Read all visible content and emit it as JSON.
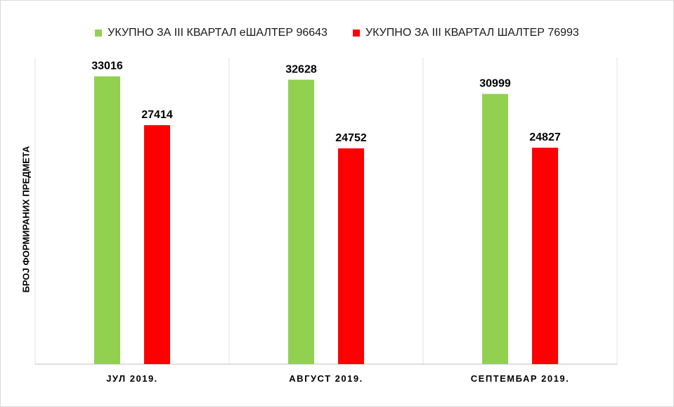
{
  "chart_data": {
    "type": "bar",
    "title": "",
    "xlabel": "",
    "ylabel": "БРОЈ ФОРМИРАНИХ ПРЕДМЕТА",
    "categories": [
      "ЈУЛ 2019.",
      "АВГУСТ 2019.",
      "СЕПТЕМБАР 2019."
    ],
    "series": [
      {
        "name": "УКУПНО ЗА III КВАРТАЛ еШАЛТЕР 96643",
        "color": "#92d050",
        "values": [
          33016,
          32628,
          30999
        ]
      },
      {
        "name": "УКУПНО ЗА III КВАРТАЛ ШАЛТЕР 76993",
        "color": "#ff0000",
        "values": [
          27414,
          24752,
          24827
        ]
      }
    ],
    "ylim": [
      0,
      35000
    ],
    "grid": false,
    "legend": "top-center"
  }
}
